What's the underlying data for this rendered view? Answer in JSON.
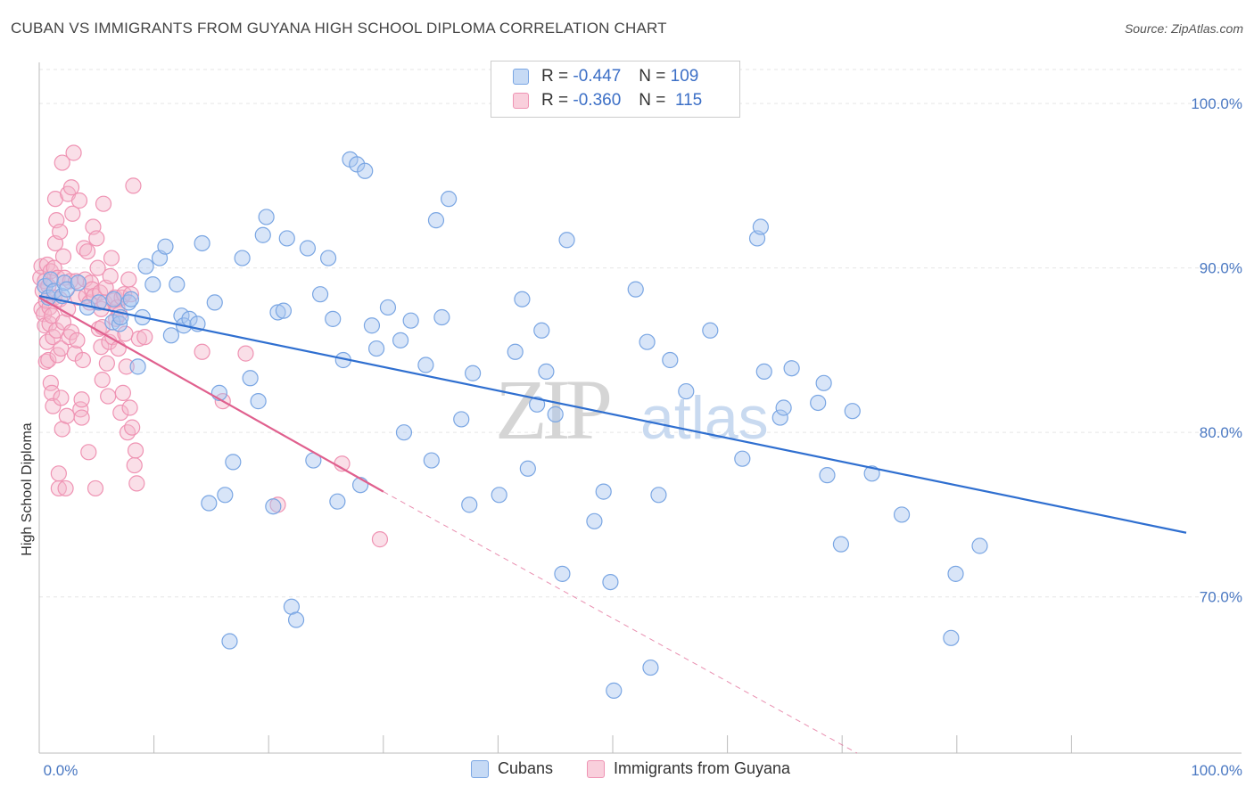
{
  "header": {
    "title": "CUBAN VS IMMIGRANTS FROM GUYANA HIGH SCHOOL DIPLOMA CORRELATION CHART",
    "source": "Source: ZipAtlas.com"
  },
  "watermark": {
    "zip": "ZIP",
    "atlas": "atlas"
  },
  "legend": {
    "rows": [
      {
        "r_label": "R =",
        "r_value": "-0.447",
        "n_label": "N =",
        "n_value": "109"
      },
      {
        "r_label": "R =",
        "r_value": "-0.360",
        "n_label": "N =",
        "n_value": "115"
      }
    ]
  },
  "colors": {
    "cubans_fill": "#a8c6ef",
    "cubans_stroke": "#7aa6e3",
    "cubans_line": "#2f6fd0",
    "guyana_fill": "#f5b7cb",
    "guyana_stroke": "#ef93b3",
    "guyana_line": "#e0608e",
    "grid": "#e6e6e6",
    "axis_text": "#4a78c2"
  },
  "chart_data": {
    "type": "scatter",
    "title": "CUBAN VS IMMIGRANTS FROM GUYANA HIGH SCHOOL DIPLOMA CORRELATION CHART",
    "xlabel": "",
    "ylabel": "High School Diploma",
    "xlim": [
      0,
      100
    ],
    "ylim": [
      60.5,
      102.5
    ],
    "x_tick_labels": [
      "0.0%",
      "100.0%"
    ],
    "y_ticks": [
      70,
      80,
      90,
      100
    ],
    "y_tick_labels": [
      "70.0%",
      "80.0%",
      "90.0%",
      "100.0%"
    ],
    "grid": true,
    "legend_position": "bottom",
    "series": [
      {
        "name": "Cubans",
        "r": -0.447,
        "n": 109,
        "trend": {
          "x": [
            0,
            100
          ],
          "y": [
            88.3,
            73.9
          ]
        },
        "points": [
          [
            0.5,
            88.9
          ],
          [
            0.8,
            88.2
          ],
          [
            1.0,
            89.3
          ],
          [
            1.3,
            88.6
          ],
          [
            2.0,
            88.3
          ],
          [
            2.2,
            89.1
          ],
          [
            2.4,
            88.7
          ],
          [
            3.4,
            89.1
          ],
          [
            4.2,
            87.6
          ],
          [
            5.2,
            87.9
          ],
          [
            6.4,
            86.7
          ],
          [
            6.5,
            88.1
          ],
          [
            7.0,
            86.6
          ],
          [
            7.1,
            87.0
          ],
          [
            7.8,
            87.9
          ],
          [
            8.0,
            88.1
          ],
          [
            8.6,
            84.0
          ],
          [
            9.0,
            87.0
          ],
          [
            9.3,
            90.1
          ],
          [
            9.9,
            89.0
          ],
          [
            10.5,
            90.6
          ],
          [
            11.0,
            91.3
          ],
          [
            11.5,
            85.9
          ],
          [
            12.0,
            89.0
          ],
          [
            12.4,
            87.1
          ],
          [
            12.6,
            86.5
          ],
          [
            13.1,
            86.9
          ],
          [
            13.8,
            86.6
          ],
          [
            14.2,
            91.5
          ],
          [
            14.8,
            75.7
          ],
          [
            15.3,
            87.9
          ],
          [
            15.7,
            82.4
          ],
          [
            16.2,
            76.2
          ],
          [
            16.6,
            67.3
          ],
          [
            16.9,
            78.2
          ],
          [
            17.7,
            90.6
          ],
          [
            18.4,
            83.3
          ],
          [
            19.1,
            81.9
          ],
          [
            19.5,
            92.0
          ],
          [
            19.8,
            93.1
          ],
          [
            20.4,
            75.5
          ],
          [
            20.8,
            87.3
          ],
          [
            21.3,
            87.4
          ],
          [
            21.6,
            91.8
          ],
          [
            22.0,
            69.4
          ],
          [
            22.4,
            68.6
          ],
          [
            23.4,
            91.2
          ],
          [
            23.9,
            78.3
          ],
          [
            24.5,
            88.4
          ],
          [
            25.2,
            90.6
          ],
          [
            25.6,
            86.9
          ],
          [
            26.0,
            75.8
          ],
          [
            26.5,
            84.4
          ],
          [
            27.1,
            96.6
          ],
          [
            27.7,
            96.3
          ],
          [
            28.0,
            76.8
          ],
          [
            28.4,
            95.9
          ],
          [
            29.0,
            86.5
          ],
          [
            29.4,
            85.1
          ],
          [
            30.4,
            87.6
          ],
          [
            31.5,
            85.6
          ],
          [
            31.8,
            80.0
          ],
          [
            32.4,
            86.8
          ],
          [
            33.7,
            84.1
          ],
          [
            34.2,
            78.3
          ],
          [
            34.6,
            92.9
          ],
          [
            35.1,
            87.0
          ],
          [
            35.7,
            94.2
          ],
          [
            36.8,
            80.8
          ],
          [
            37.5,
            75.6
          ],
          [
            37.8,
            83.6
          ],
          [
            40.1,
            76.2
          ],
          [
            41.5,
            84.9
          ],
          [
            42.1,
            88.1
          ],
          [
            42.6,
            77.8
          ],
          [
            43.4,
            81.7
          ],
          [
            43.8,
            86.2
          ],
          [
            44.2,
            83.7
          ],
          [
            45.0,
            81.1
          ],
          [
            45.6,
            71.4
          ],
          [
            46.0,
            91.7
          ],
          [
            48.4,
            74.6
          ],
          [
            49.2,
            76.4
          ],
          [
            49.8,
            70.9
          ],
          [
            50.1,
            64.3
          ],
          [
            52.0,
            88.7
          ],
          [
            53.0,
            85.5
          ],
          [
            53.3,
            65.7
          ],
          [
            54.0,
            76.2
          ],
          [
            55.0,
            84.4
          ],
          [
            56.4,
            82.5
          ],
          [
            58.5,
            86.2
          ],
          [
            61.3,
            78.4
          ],
          [
            62.6,
            91.8
          ],
          [
            62.9,
            92.5
          ],
          [
            63.2,
            83.7
          ],
          [
            64.6,
            80.9
          ],
          [
            64.9,
            81.5
          ],
          [
            65.6,
            83.9
          ],
          [
            67.9,
            81.8
          ],
          [
            68.7,
            77.4
          ],
          [
            68.4,
            83.0
          ],
          [
            69.9,
            73.2
          ],
          [
            70.9,
            81.3
          ],
          [
            72.6,
            77.5
          ],
          [
            75.2,
            75.0
          ],
          [
            79.5,
            67.5
          ],
          [
            79.9,
            71.4
          ],
          [
            82.0,
            73.1
          ]
        ]
      },
      {
        "name": "Immigrants from Guyana",
        "r": -0.36,
        "n": 115,
        "trend": {
          "x": [
            0,
            30
          ],
          "y": [
            88.2,
            76.4
          ]
        },
        "trend_extended": {
          "x": [
            30,
            71.3
          ],
          "y": [
            76.4,
            60.5
          ]
        },
        "points": [
          [
            0.1,
            89.4
          ],
          [
            0.2,
            87.5
          ],
          [
            0.2,
            90.1
          ],
          [
            0.3,
            88.6
          ],
          [
            0.4,
            87.2
          ],
          [
            0.5,
            89.2
          ],
          [
            0.5,
            86.5
          ],
          [
            0.6,
            88.0
          ],
          [
            0.6,
            84.3
          ],
          [
            0.7,
            90.2
          ],
          [
            0.7,
            85.5
          ],
          [
            0.8,
            88.9
          ],
          [
            0.8,
            84.4
          ],
          [
            0.9,
            87.6
          ],
          [
            0.9,
            86.6
          ],
          [
            1.0,
            89.8
          ],
          [
            1.0,
            83.0
          ],
          [
            1.1,
            82.4
          ],
          [
            1.1,
            87.1
          ],
          [
            1.2,
            85.8
          ],
          [
            1.2,
            81.6
          ],
          [
            1.3,
            88.2
          ],
          [
            1.3,
            90.0
          ],
          [
            1.4,
            94.2
          ],
          [
            1.4,
            91.5
          ],
          [
            1.5,
            92.9
          ],
          [
            1.5,
            86.2
          ],
          [
            1.6,
            84.7
          ],
          [
            1.6,
            89.4
          ],
          [
            1.7,
            76.6
          ],
          [
            1.7,
            77.5
          ],
          [
            1.8,
            92.2
          ],
          [
            1.8,
            88.1
          ],
          [
            1.9,
            82.1
          ],
          [
            1.9,
            85.1
          ],
          [
            2.0,
            96.4
          ],
          [
            2.0,
            80.2
          ],
          [
            2.1,
            90.7
          ],
          [
            2.1,
            86.7
          ],
          [
            2.2,
            89.4
          ],
          [
            2.3,
            76.6
          ],
          [
            2.4,
            81.0
          ],
          [
            2.5,
            94.5
          ],
          [
            2.5,
            87.5
          ],
          [
            2.6,
            85.8
          ],
          [
            2.7,
            89.2
          ],
          [
            2.8,
            94.9
          ],
          [
            2.8,
            86.1
          ],
          [
            2.9,
            93.3
          ],
          [
            3.0,
            97.0
          ],
          [
            3.1,
            84.8
          ],
          [
            3.2,
            89.2
          ],
          [
            3.3,
            85.6
          ],
          [
            3.4,
            88.2
          ],
          [
            3.5,
            94.1
          ],
          [
            3.6,
            81.4
          ],
          [
            3.7,
            82.0
          ],
          [
            3.7,
            80.9
          ],
          [
            3.8,
            84.4
          ],
          [
            3.9,
            91.2
          ],
          [
            4.0,
            89.3
          ],
          [
            4.1,
            88.3
          ],
          [
            4.2,
            91.0
          ],
          [
            4.3,
            78.8
          ],
          [
            4.4,
            87.9
          ],
          [
            4.5,
            89.1
          ],
          [
            4.6,
            88.7
          ],
          [
            4.7,
            92.5
          ],
          [
            4.8,
            88.3
          ],
          [
            4.9,
            76.6
          ],
          [
            5.0,
            91.8
          ],
          [
            5.1,
            90.0
          ],
          [
            5.2,
            86.3
          ],
          [
            5.3,
            88.5
          ],
          [
            5.4,
            87.5
          ],
          [
            5.4,
            85.2
          ],
          [
            5.5,
            86.4
          ],
          [
            5.5,
            83.2
          ],
          [
            5.6,
            93.9
          ],
          [
            5.7,
            87.9
          ],
          [
            5.8,
            88.8
          ],
          [
            5.9,
            84.2
          ],
          [
            6.0,
            82.2
          ],
          [
            6.1,
            85.5
          ],
          [
            6.2,
            89.5
          ],
          [
            6.3,
            90.6
          ],
          [
            6.4,
            85.8
          ],
          [
            6.5,
            88.0
          ],
          [
            6.6,
            88.2
          ],
          [
            6.7,
            86.9
          ],
          [
            6.8,
            87.6
          ],
          [
            6.9,
            85.1
          ],
          [
            7.0,
            87.2
          ],
          [
            7.1,
            81.2
          ],
          [
            7.2,
            88.2
          ],
          [
            7.3,
            82.4
          ],
          [
            7.4,
            88.4
          ],
          [
            7.5,
            86.0
          ],
          [
            7.6,
            84.0
          ],
          [
            7.7,
            80.0
          ],
          [
            7.8,
            89.3
          ],
          [
            7.9,
            81.5
          ],
          [
            8.0,
            88.4
          ],
          [
            8.1,
            80.3
          ],
          [
            8.2,
            95.0
          ],
          [
            8.3,
            78.0
          ],
          [
            8.4,
            78.9
          ],
          [
            8.5,
            76.9
          ],
          [
            8.7,
            85.7
          ],
          [
            9.2,
            85.8
          ],
          [
            14.2,
            84.9
          ],
          [
            16.0,
            81.9
          ],
          [
            18.0,
            84.8
          ],
          [
            20.8,
            75.6
          ],
          [
            26.4,
            78.1
          ],
          [
            29.7,
            73.5
          ]
        ]
      }
    ]
  }
}
